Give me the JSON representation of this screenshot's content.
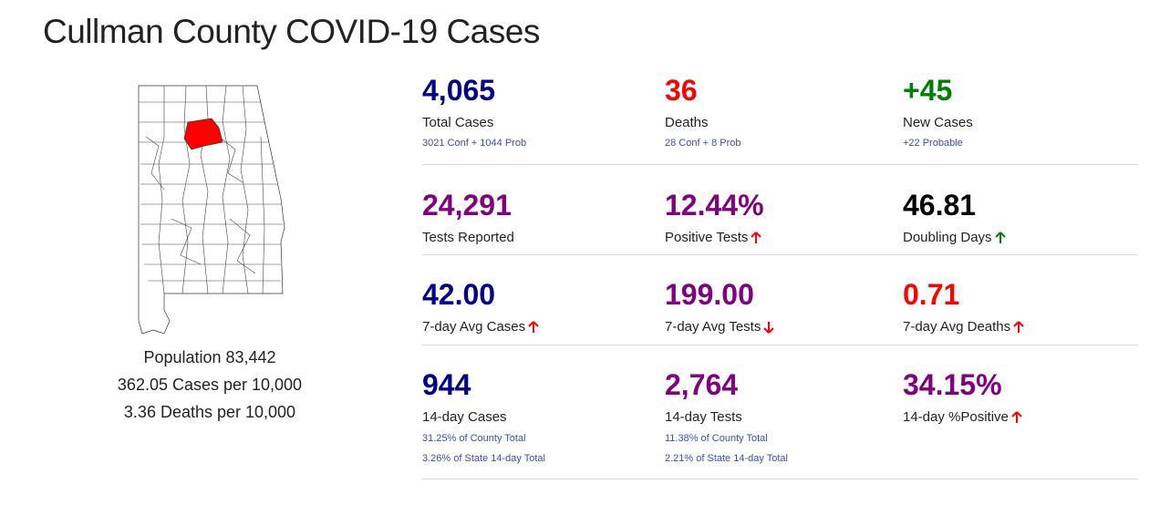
{
  "page": {
    "title": "Cullman County COVID-19 Cases"
  },
  "population": {
    "line1": "Population 83,442",
    "line2": "362.05 Cases per 10,000",
    "line3": "3.36 Deaths per 10,000"
  },
  "colors": {
    "navy": "#00008b",
    "red": "#ff0000",
    "green": "#008000",
    "purple": "#800080",
    "highlight_county": "#ff0000"
  },
  "stats": {
    "total_cases": {
      "value": "4,065",
      "label": "Total Cases",
      "sub": "3021 Conf + 1044 Prob"
    },
    "deaths": {
      "value": "36",
      "label": "Deaths",
      "sub": "28 Conf + 8 Prob"
    },
    "new_cases": {
      "value": "+45",
      "label": "New Cases",
      "sub": "+22 Probable"
    },
    "tests_reported": {
      "value": "24,291",
      "label": "Tests Reported"
    },
    "positive_tests": {
      "value": "12.44%",
      "label": "Positive Tests",
      "trend": "up"
    },
    "doubling_days": {
      "value": "46.81",
      "label": "Doubling Days",
      "trend": "up"
    },
    "avg_cases_7": {
      "value": "42.00",
      "label": "7-day Avg Cases",
      "trend": "up"
    },
    "avg_tests_7": {
      "value": "199.00",
      "label": "7-day Avg Tests",
      "trend": "down"
    },
    "avg_deaths_7": {
      "value": "0.71",
      "label": "7-day Avg Deaths",
      "trend": "up"
    },
    "cases_14": {
      "value": "944",
      "label": "14-day Cases",
      "sub1": "31.25% of County Total",
      "sub2": "3.26% of State 14-day Total"
    },
    "tests_14": {
      "value": "2,764",
      "label": "14-day Tests",
      "sub1": "11.38% of County Total",
      "sub2": "2.21% of State 14-day Total"
    },
    "positive_14": {
      "value": "34.15%",
      "label": "14-day %Positive",
      "trend": "up"
    }
  }
}
